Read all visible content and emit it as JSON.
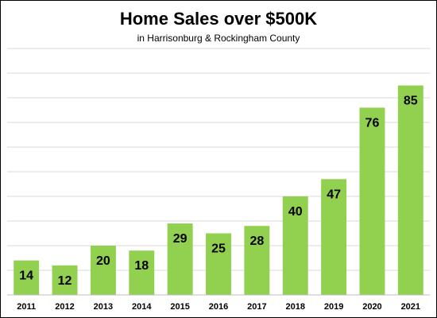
{
  "chart_data": {
    "type": "bar",
    "title": "Home Sales over $500K",
    "subtitle": "in Harrisonburg & Rockingham County",
    "categories": [
      "2011",
      "2012",
      "2013",
      "2014",
      "2015",
      "2016",
      "2017",
      "2018",
      "2019",
      "2020",
      "2021"
    ],
    "values": [
      14,
      12,
      20,
      18,
      29,
      25,
      28,
      40,
      47,
      76,
      85
    ],
    "ylim": [
      0,
      100
    ],
    "grid": true,
    "bar_color": "#92d050",
    "grid_color": "#d9d9d9",
    "data_labels": true
  }
}
